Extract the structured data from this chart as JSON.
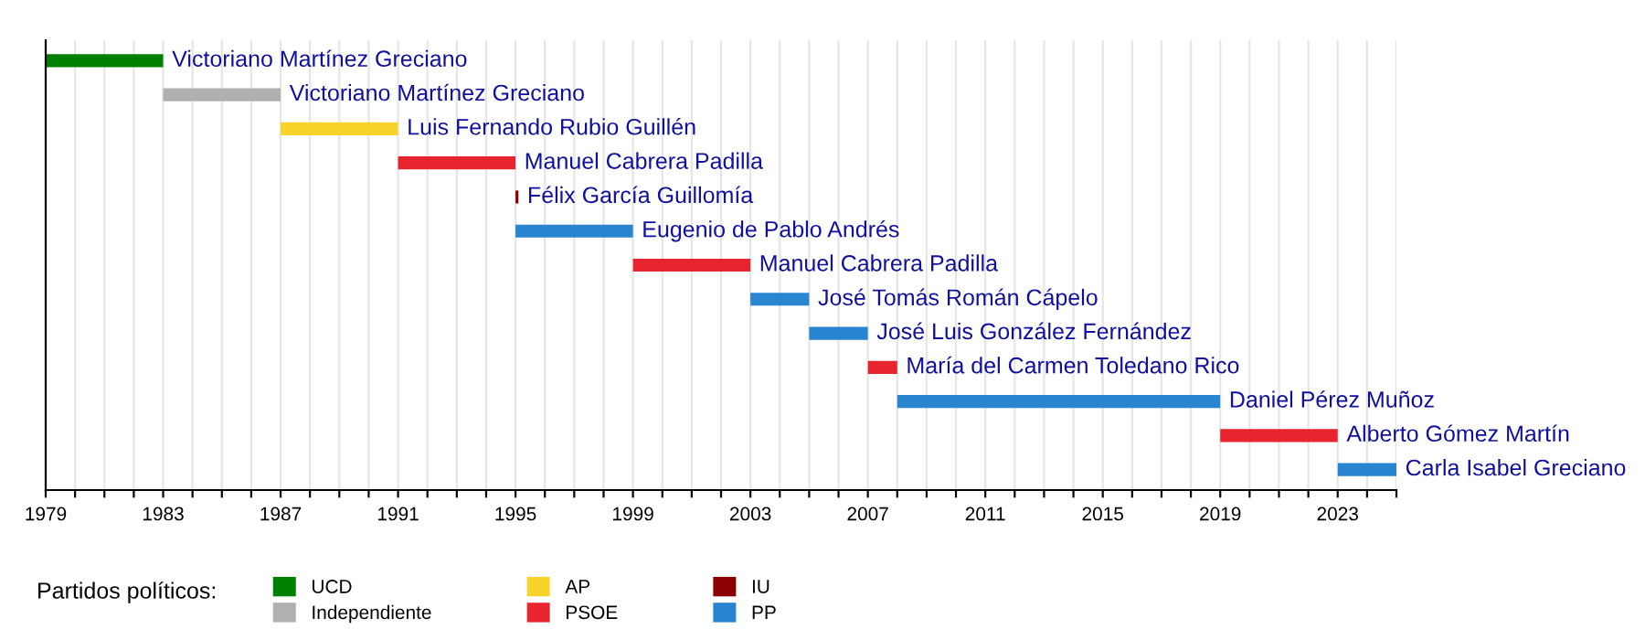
{
  "chart_data": {
    "type": "bar",
    "orientation": "horizontal",
    "legend_title": "Partidos políticos:",
    "categories": [
      null,
      null,
      null,
      null,
      null,
      null,
      null,
      null,
      null,
      null,
      null,
      null,
      null
    ],
    "series": [
      {
        "name": "UCD",
        "color": "#008000",
        "base": [
          1979,
          null,
          null,
          null,
          null,
          null,
          null,
          null,
          null,
          null,
          null,
          null,
          null
        ],
        "values": [
          4,
          null,
          null,
          null,
          null,
          null,
          null,
          null,
          null,
          null,
          null,
          null,
          null
        ],
        "value_labels": [
          "Victoriano Martínez Greciano",
          null,
          null,
          null,
          null,
          null,
          null,
          null,
          null,
          null,
          null,
          null,
          null
        ]
      },
      {
        "name": "Independiente",
        "color": "#b0b0b0",
        "base": [
          null,
          1983,
          null,
          null,
          null,
          null,
          null,
          null,
          null,
          null,
          null,
          null,
          null
        ],
        "values": [
          null,
          4,
          null,
          null,
          null,
          null,
          null,
          null,
          null,
          null,
          null,
          null,
          null
        ],
        "value_labels": [
          null,
          "Victoriano Martínez Greciano",
          null,
          null,
          null,
          null,
          null,
          null,
          null,
          null,
          null,
          null,
          null
        ]
      },
      {
        "name": "AP",
        "color": "#f8d42a",
        "base": [
          null,
          null,
          1987,
          null,
          null,
          null,
          null,
          null,
          null,
          null,
          null,
          null,
          null
        ],
        "values": [
          null,
          null,
          4,
          null,
          null,
          null,
          null,
          null,
          null,
          null,
          null,
          null,
          null
        ],
        "value_labels": [
          null,
          null,
          "Luis Fernando Rubio Guillén",
          null,
          null,
          null,
          null,
          null,
          null,
          null,
          null,
          null,
          null
        ]
      },
      {
        "name": "PSOE",
        "color": "#e8242e",
        "base": [
          null,
          null,
          null,
          1991,
          null,
          null,
          1999,
          null,
          null,
          2007,
          null,
          2019,
          null
        ],
        "values": [
          null,
          null,
          null,
          4,
          null,
          null,
          4,
          null,
          null,
          1,
          null,
          4,
          null
        ],
        "value_labels": [
          null,
          null,
          null,
          "Manuel Cabrera Padilla",
          null,
          null,
          "Manuel Cabrera Padilla",
          null,
          null,
          "María del Carmen Toledano Rico",
          null,
          "Alberto Gómez Martín",
          null
        ]
      },
      {
        "name": "IU",
        "color": "#8b0000",
        "base": [
          null,
          null,
          null,
          null,
          1995,
          null,
          null,
          null,
          null,
          null,
          null,
          null,
          null
        ],
        "values": [
          null,
          null,
          null,
          null,
          0.1,
          null,
          null,
          null,
          null,
          null,
          null,
          null,
          null
        ],
        "value_labels": [
          null,
          null,
          null,
          null,
          "Félix García Guillomía",
          null,
          null,
          null,
          null,
          null,
          null,
          null,
          null
        ]
      },
      {
        "name": "PP",
        "color": "#2a85d0",
        "base": [
          null,
          null,
          null,
          null,
          null,
          1995,
          null,
          2003,
          2005,
          null,
          2008,
          null,
          2023
        ],
        "values": [
          null,
          null,
          null,
          null,
          null,
          4,
          null,
          2,
          2,
          null,
          11,
          null,
          2
        ],
        "value_labels": [
          null,
          null,
          null,
          null,
          null,
          "Eugenio de Pablo Andrés",
          null,
          "José Tomás Román Cápelo",
          "José Luis González Fernández",
          null,
          "Daniel Pérez Muñoz",
          null,
          "Carla Isabel Greciano"
        ]
      }
    ],
    "xlim": [
      1979,
      2025
    ],
    "xticks": [
      1979,
      {
        "value": 1980,
        "label": null
      },
      {
        "value": 1981,
        "label": null
      },
      {
        "value": 1982,
        "label": null
      },
      1983,
      {
        "value": 1984,
        "label": null
      },
      {
        "value": 1985,
        "label": null
      },
      {
        "value": 1986,
        "label": null
      },
      1987,
      {
        "value": 1988,
        "label": null
      },
      {
        "value": 1989,
        "label": null
      },
      {
        "value": 1990,
        "label": null
      },
      1991,
      {
        "value": 1992,
        "label": null
      },
      {
        "value": 1993,
        "label": null
      },
      {
        "value": 1994,
        "label": null
      },
      1995,
      {
        "value": 1996,
        "label": null
      },
      {
        "value": 1997,
        "label": null
      },
      {
        "value": 1998,
        "label": null
      },
      1999,
      {
        "value": 2000,
        "label": null
      },
      {
        "value": 2001,
        "label": null
      },
      {
        "value": 2002,
        "label": null
      },
      2003,
      {
        "value": 2004,
        "label": null
      },
      {
        "value": 2005,
        "label": null
      },
      {
        "value": 2006,
        "label": null
      },
      2007,
      {
        "value": 2008,
        "label": null
      },
      {
        "value": 2009,
        "label": null
      },
      {
        "value": 2010,
        "label": null
      },
      2011,
      {
        "value": 2012,
        "label": null
      },
      {
        "value": 2013,
        "label": null
      },
      {
        "value": 2014,
        "label": null
      },
      2015,
      {
        "value": 2016,
        "label": null
      },
      {
        "value": 2017,
        "label": null
      },
      {
        "value": 2018,
        "label": null
      },
      2019,
      {
        "value": 2020,
        "label": null
      },
      {
        "value": 2021,
        "label": null
      },
      {
        "value": 2022,
        "label": null
      },
      2023,
      {
        "value": 2024,
        "label": null
      },
      {
        "value": 2025,
        "label": null
      }
    ],
    "grid": "x",
    "legend": "bottom left",
    "tick_labels": "x"
  }
}
